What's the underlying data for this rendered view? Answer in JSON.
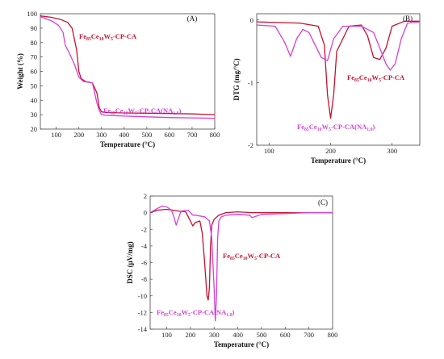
{
  "colors": {
    "red": "#c8102e",
    "magenta": "#d63fd6"
  },
  "chart_data": [
    {
      "id": "A",
      "type": "line",
      "panel_label": "(A)",
      "xlabel": "Temperature (°C)",
      "ylabel": "Weight (%)",
      "xlim": [
        30,
        800
      ],
      "ylim": [
        20,
        100
      ],
      "xticks": [
        100,
        200,
        300,
        400,
        500,
        600,
        700,
        800
      ],
      "yticks": [
        20,
        30,
        40,
        50,
        60,
        70,
        80,
        90,
        100
      ],
      "series": [
        {
          "color": "red",
          "x": [
            30,
            80,
            120,
            150,
            170,
            190,
            200,
            210,
            230,
            260,
            280,
            290,
            300,
            320,
            400,
            500,
            600,
            700,
            800
          ],
          "y": [
            98.5,
            97.5,
            96,
            94,
            90,
            75,
            60,
            55,
            53,
            52,
            45,
            35,
            32,
            31.5,
            31.2,
            31,
            30.8,
            30.5,
            30
          ]
        },
        {
          "color": "magenta",
          "x": [
            30,
            80,
            110,
            130,
            140,
            160,
            180,
            200,
            220,
            260,
            270,
            280,
            290,
            300,
            320,
            400,
            500,
            600,
            700,
            800
          ],
          "y": [
            98,
            95,
            92,
            87,
            78,
            72,
            65,
            56,
            53,
            52,
            45,
            38,
            33,
            30,
            29.5,
            29,
            28.5,
            28,
            27.8,
            27.5
          ]
        }
      ],
      "annotations": [
        {
          "series": "red",
          "label_pre": "Fe",
          "s1": "85",
          "mid1": "Ce",
          "s2": "10",
          "mid2": "W",
          "s3": "5",
          "label_post": "-CP-CA",
          "s4": "",
          "tail": ""
        },
        {
          "series": "magenta",
          "label_pre": "Fe",
          "s1": "85",
          "mid1": "Ce",
          "s2": "10",
          "mid2": "W",
          "s3": "5",
          "label_post": "-CP-CA(NA",
          "s4": "1.0",
          "tail": ")"
        }
      ]
    },
    {
      "id": "B",
      "type": "line",
      "panel_label": "(B)",
      "xlabel": "Temperature (°C)",
      "ylabel": "DTG (mg/°C)",
      "xlim": [
        80,
        345
      ],
      "ylim": [
        -2,
        0.1
      ],
      "xticks": [
        100,
        200,
        300
      ],
      "yticks": [
        -2,
        -1,
        0
      ],
      "series": [
        {
          "color": "red",
          "x": [
            80,
            150,
            180,
            190,
            195,
            200,
            205,
            210,
            230,
            250,
            260,
            270,
            280,
            290,
            300,
            320,
            345
          ],
          "y": [
            -0.03,
            -0.05,
            -0.1,
            -0.4,
            -1.2,
            -1.57,
            -1.2,
            -0.5,
            -0.1,
            -0.08,
            -0.25,
            -0.6,
            -0.63,
            -0.45,
            -0.1,
            -0.02,
            -0.02
          ]
        },
        {
          "color": "magenta",
          "x": [
            80,
            110,
            125,
            135,
            145,
            155,
            165,
            175,
            185,
            195,
            205,
            220,
            250,
            270,
            280,
            290,
            297,
            305,
            315,
            325,
            345
          ],
          "y": [
            -0.08,
            -0.1,
            -0.35,
            -0.58,
            -0.3,
            -0.15,
            -0.2,
            -0.4,
            -0.6,
            -0.65,
            -0.3,
            -0.1,
            -0.1,
            -0.2,
            -0.45,
            -0.7,
            -0.8,
            -0.7,
            -0.3,
            -0.05,
            -0.03
          ]
        }
      ],
      "annotations": [
        {
          "series": "red",
          "label_pre": "Fe",
          "s1": "85",
          "mid1": "Ce",
          "s2": "10",
          "mid2": "W",
          "s3": "5",
          "label_post": "-CP-CA",
          "s4": "",
          "tail": ""
        },
        {
          "series": "magenta",
          "label_pre": "Fe",
          "s1": "85",
          "mid1": "Ce",
          "s2": "10",
          "mid2": "W",
          "s3": "5",
          "label_post": "-CP-CA(NA",
          "s4": "1.0",
          "tail": ")"
        }
      ]
    },
    {
      "id": "C",
      "type": "line",
      "panel_label": "(C)",
      "xlabel": "Temperature (°C)",
      "ylabel": "DSC (μV/mg)",
      "xlim": [
        30,
        800
      ],
      "ylim": [
        -14,
        2
      ],
      "xticks": [
        100,
        200,
        300,
        400,
        500,
        600,
        700,
        800
      ],
      "yticks": [
        -14,
        -12,
        -10,
        -8,
        -6,
        -4,
        -2,
        0,
        2
      ],
      "series": [
        {
          "color": "red",
          "x": [
            30,
            60,
            100,
            150,
            180,
            200,
            210,
            220,
            240,
            250,
            260,
            270,
            275,
            280,
            285,
            290,
            300,
            320,
            350,
            400,
            460,
            500,
            600,
            700,
            800
          ],
          "y": [
            0,
            0.3,
            0.4,
            0.2,
            0.1,
            -1,
            -1.6,
            -1.2,
            -1.0,
            -2.5,
            -6,
            -10,
            -10.5,
            -9,
            -4,
            -1.5,
            -0.8,
            -0.3,
            0,
            0.1,
            0,
            0,
            0,
            0,
            0
          ]
        },
        {
          "color": "magenta",
          "x": [
            30,
            60,
            80,
            100,
            120,
            130,
            140,
            160,
            190,
            200,
            210,
            220,
            260,
            280,
            290,
            300,
            305,
            310,
            315,
            320,
            330,
            350,
            400,
            450,
            460,
            480,
            500,
            600,
            700,
            800
          ],
          "y": [
            0,
            0.5,
            0.8,
            0.7,
            0.3,
            -0.5,
            -1.5,
            0.2,
            0.3,
            0,
            -0.3,
            -0.3,
            -0.5,
            -1,
            -3,
            -9,
            -13,
            -10,
            -3,
            -1,
            -0.5,
            -0.3,
            -0.2,
            -0.3,
            -0.6,
            -0.4,
            -0.2,
            -0.1,
            0,
            0
          ]
        }
      ],
      "annotations": [
        {
          "series": "red",
          "label_pre": "Fe",
          "s1": "85",
          "mid1": "Ce",
          "s2": "10",
          "mid2": "W",
          "s3": "5",
          "label_post": "-CP-CA",
          "s4": "",
          "tail": ""
        },
        {
          "series": "magenta",
          "label_pre": "Fe",
          "s1": "85",
          "mid1": "Ce",
          "s2": "10",
          "mid2": "W",
          "s3": "5",
          "label_post": "-CP-CA(NA",
          "s4": "1.0",
          "tail": ")"
        }
      ]
    }
  ]
}
